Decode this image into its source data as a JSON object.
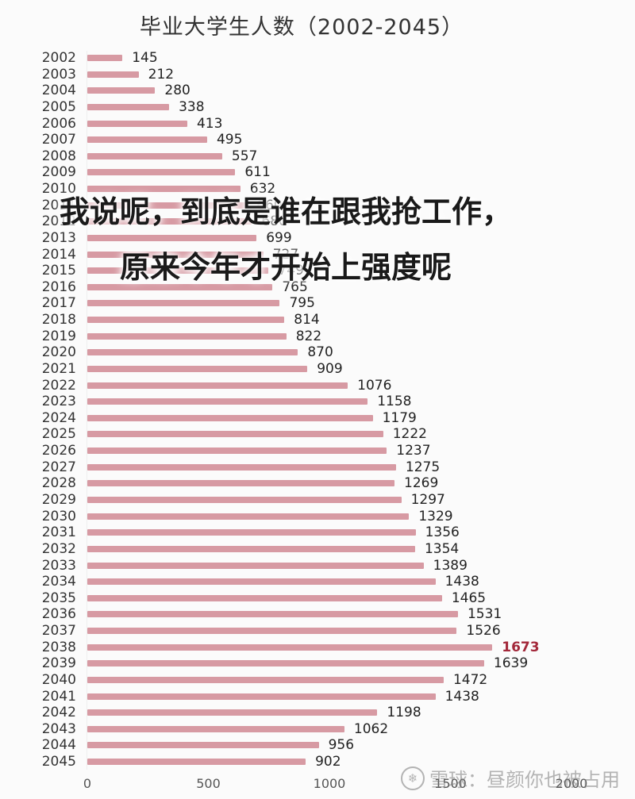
{
  "title": "毕业大学生人数（2002-2045）",
  "caption": {
    "line1": "我说呢，到底是谁在跟我抢工作，",
    "line2": "原来今年才开始上强度呢"
  },
  "watermark": {
    "icon": "snowball-icon",
    "text": "雪球：昼颜你也被占用"
  },
  "colors": {
    "bar": "#d79aa3",
    "highlight": "#a3283a",
    "background": "#fbfbfb"
  },
  "chart_data": {
    "type": "bar",
    "orientation": "horizontal",
    "title": "毕业大学生人数（2002-2045）",
    "xlabel": "",
    "ylabel": "",
    "xlim": [
      0,
      2000
    ],
    "x_ticks": [
      "0",
      "500",
      "1000",
      "1500",
      "2000"
    ],
    "grid": false,
    "legend": null,
    "categories": [
      "2002",
      "2003",
      "2004",
      "2005",
      "2006",
      "2007",
      "2008",
      "2009",
      "2010",
      "2011",
      "2012",
      "2013",
      "2014",
      "2015",
      "2016",
      "2017",
      "2018",
      "2019",
      "2020",
      "2021",
      "2022",
      "2023",
      "2024",
      "2025",
      "2026",
      "2027",
      "2028",
      "2029",
      "2030",
      "2031",
      "2032",
      "2033",
      "2034",
      "2035",
      "2036",
      "2037",
      "2038",
      "2039",
      "2040",
      "2041",
      "2042",
      "2043",
      "2044",
      "2045"
    ],
    "values": [
      145,
      212,
      280,
      338,
      413,
      495,
      557,
      611,
      632,
      660,
      680,
      699,
      727,
      749,
      765,
      795,
      814,
      822,
      870,
      909,
      1076,
      1158,
      1179,
      1222,
      1237,
      1275,
      1269,
      1297,
      1329,
      1356,
      1354,
      1389,
      1438,
      1465,
      1531,
      1526,
      1673,
      1639,
      1472,
      1438,
      1198,
      1062,
      956,
      902
    ],
    "highlight_category": "2038",
    "annotations": [
      "1673 highlighted in red"
    ]
  }
}
